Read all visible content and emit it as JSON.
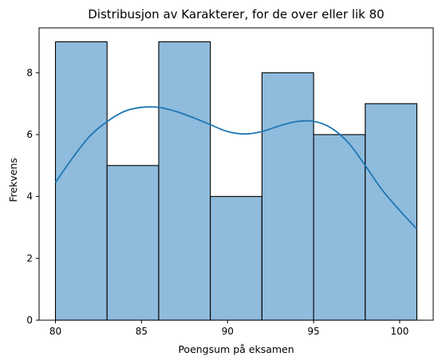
{
  "chart_data": {
    "type": "bar",
    "subtype": "histogram-with-kde",
    "title": "Distribusjon av Karakterer, for de over eller lik 80",
    "xlabel": "Poengsum på eksamen",
    "ylabel": "Frekvens",
    "bins": [
      {
        "start": 80,
        "end": 83,
        "count": 9
      },
      {
        "start": 83,
        "end": 86,
        "count": 5
      },
      {
        "start": 86,
        "end": 89,
        "count": 9
      },
      {
        "start": 89,
        "end": 92,
        "count": 4
      },
      {
        "start": 92,
        "end": 95,
        "count": 8
      },
      {
        "start": 95,
        "end": 98,
        "count": 6
      },
      {
        "start": 98,
        "end": 101,
        "count": 7
      }
    ],
    "kde": {
      "x": [
        80,
        81,
        82,
        83,
        84,
        85,
        86,
        87,
        88,
        89,
        90,
        91,
        92,
        93,
        94,
        95,
        96,
        97,
        98,
        99,
        100,
        101
      ],
      "y": [
        4.45,
        5.25,
        5.95,
        6.42,
        6.75,
        6.88,
        6.88,
        6.75,
        6.55,
        6.32,
        6.1,
        6.02,
        6.1,
        6.28,
        6.42,
        6.43,
        6.22,
        5.75,
        5.0,
        4.2,
        3.55,
        2.95
      ]
    },
    "xticks": [
      80,
      85,
      90,
      95,
      100
    ],
    "yticks": [
      0,
      2,
      4,
      6,
      8
    ],
    "xlim": [
      79.05,
      101.95
    ],
    "ylim": [
      0,
      9.45
    ],
    "grid": false,
    "colors": {
      "bar_fill": "#8fbbdc",
      "bar_edge": "#000000",
      "kde_line": "#1f77b4"
    }
  }
}
